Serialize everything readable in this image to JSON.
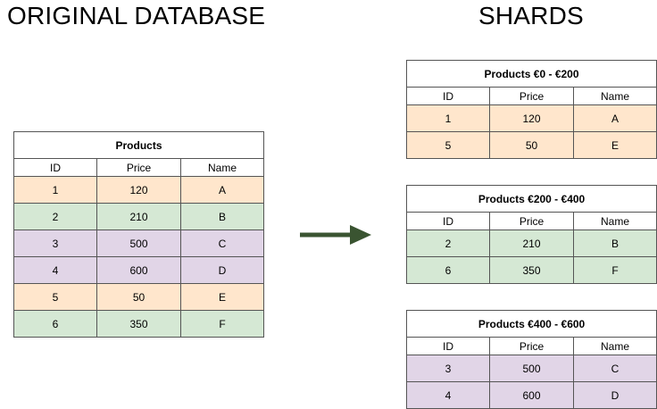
{
  "headings": {
    "original": "ORIGINAL DATABASE",
    "shards": "SHARDS"
  },
  "colors": {
    "orange": "#FFE6CC",
    "green": "#D5E8D4",
    "purple": "#E1D5E7",
    "arrow": "#3A5431",
    "border": "#555555"
  },
  "tables": [
    {
      "id": "original",
      "title": "Products",
      "columns": [
        "ID",
        "Price",
        "Name"
      ],
      "rows": [
        {
          "cells": [
            "1",
            "120",
            "A"
          ],
          "color": "orange"
        },
        {
          "cells": [
            "2",
            "210",
            "B"
          ],
          "color": "green"
        },
        {
          "cells": [
            "3",
            "500",
            "C"
          ],
          "color": "purple"
        },
        {
          "cells": [
            "4",
            "600",
            "D"
          ],
          "color": "purple"
        },
        {
          "cells": [
            "5",
            "50",
            "E"
          ],
          "color": "orange"
        },
        {
          "cells": [
            "6",
            "350",
            "F"
          ],
          "color": "green"
        }
      ]
    },
    {
      "id": "shard-1",
      "title": "Products €0 - €200",
      "columns": [
        "ID",
        "Price",
        "Name"
      ],
      "rows": [
        {
          "cells": [
            "1",
            "120",
            "A"
          ],
          "color": "orange"
        },
        {
          "cells": [
            "5",
            "50",
            "E"
          ],
          "color": "orange"
        }
      ]
    },
    {
      "id": "shard-2",
      "title": "Products €200 - €400",
      "columns": [
        "ID",
        "Price",
        "Name"
      ],
      "rows": [
        {
          "cells": [
            "2",
            "210",
            "B"
          ],
          "color": "green"
        },
        {
          "cells": [
            "6",
            "350",
            "F"
          ],
          "color": "green"
        }
      ]
    },
    {
      "id": "shard-3",
      "title": "Products €400 - €600",
      "columns": [
        "ID",
        "Price",
        "Name"
      ],
      "rows": [
        {
          "cells": [
            "3",
            "500",
            "C"
          ],
          "color": "purple"
        },
        {
          "cells": [
            "4",
            "600",
            "D"
          ],
          "color": "purple"
        }
      ]
    }
  ]
}
